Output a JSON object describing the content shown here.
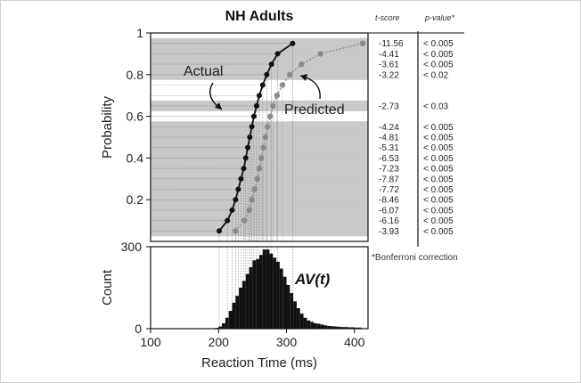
{
  "chart_data": [
    {
      "type": "line",
      "title": "NH Adults",
      "xlabel": "",
      "ylabel": "Probability",
      "ylim": [
        0.0,
        1.0
      ],
      "xlim": [
        100,
        420
      ],
      "ytick_labels": [
        "0.2",
        "0.4",
        "0.6",
        "0.8",
        "1"
      ],
      "yticks": [
        0.2,
        0.4,
        0.6,
        0.8,
        1.0
      ],
      "probability_levels": [
        0.95,
        0.9,
        0.85,
        0.8,
        0.75,
        0.7,
        0.65,
        0.6,
        0.55,
        0.5,
        0.45,
        0.4,
        0.35,
        0.3,
        0.25,
        0.2,
        0.15,
        0.1,
        0.05
      ],
      "series": [
        {
          "name": "Actual",
          "color": "#111111",
          "x": [
            201,
            213,
            220,
            225,
            229,
            233,
            237,
            240,
            243,
            246,
            249,
            252,
            256,
            260,
            265,
            271,
            278,
            287,
            309
          ],
          "y": [
            0.05,
            0.1,
            0.15,
            0.2,
            0.25,
            0.3,
            0.35,
            0.4,
            0.45,
            0.5,
            0.55,
            0.6,
            0.65,
            0.7,
            0.75,
            0.8,
            0.85,
            0.9,
            0.95
          ]
        },
        {
          "name": "Predicted",
          "color": "#8a8a8a",
          "x": [
            225,
            238,
            245,
            249,
            253,
            257,
            260,
            263,
            266,
            269,
            272,
            276,
            280,
            286,
            294,
            305,
            322,
            350,
            412
          ],
          "y": [
            0.05,
            0.1,
            0.15,
            0.2,
            0.25,
            0.3,
            0.35,
            0.4,
            0.45,
            0.5,
            0.55,
            0.6,
            0.65,
            0.7,
            0.75,
            0.8,
            0.85,
            0.9,
            0.95
          ]
        }
      ],
      "significance_table": {
        "headers": [
          "t-score",
          "p-value*"
        ],
        "rows": [
          {
            "t": "-11.56",
            "p": "< 0.005",
            "level": 0.95,
            "significant": true
          },
          {
            "t": "-4.41",
            "p": "< 0.005",
            "level": 0.9,
            "significant": true
          },
          {
            "t": "-3.61",
            "p": "< 0.005",
            "level": 0.85,
            "significant": true
          },
          {
            "t": "-3.22",
            "p": "< 0.02",
            "level": 0.8,
            "significant": true
          },
          {
            "t": "",
            "p": "",
            "level": 0.75,
            "significant": false
          },
          {
            "t": "",
            "p": "",
            "level": 0.7,
            "significant": false
          },
          {
            "t": "-2.73",
            "p": "< 0.03",
            "level": 0.65,
            "significant": true
          },
          {
            "t": "",
            "p": "",
            "level": 0.6,
            "significant": false
          },
          {
            "t": "-4.24",
            "p": "< 0.005",
            "level": 0.55,
            "significant": true
          },
          {
            "t": "-4.81",
            "p": "< 0.005",
            "level": 0.5,
            "significant": true
          },
          {
            "t": "-5.31",
            "p": "< 0.005",
            "level": 0.45,
            "significant": true
          },
          {
            "t": "-6.53",
            "p": "< 0.005",
            "level": 0.4,
            "significant": true
          },
          {
            "t": "-7.23",
            "p": "< 0.005",
            "level": 0.35,
            "significant": true
          },
          {
            "t": "-7.87",
            "p": "< 0.005",
            "level": 0.3,
            "significant": true
          },
          {
            "t": "-7.72",
            "p": "< 0.005",
            "level": 0.25,
            "significant": true
          },
          {
            "t": "-8.46",
            "p": "< 0.005",
            "level": 0.2,
            "significant": true
          },
          {
            "t": "-6.07",
            "p": "< 0.005",
            "level": 0.15,
            "significant": true
          },
          {
            "t": "-6.16",
            "p": "< 0.005",
            "level": 0.1,
            "significant": true
          },
          {
            "t": "-3.93",
            "p": "< 0.005",
            "level": 0.05,
            "significant": true
          }
        ],
        "footnote": "*Bonferroni correction"
      },
      "grid": false,
      "shaded_color": "#c9c9c9"
    },
    {
      "type": "bar",
      "title": "",
      "inset_label": "AV(t)",
      "xlabel": "Reaction Time (ms)",
      "ylabel": "Count",
      "xlim": [
        100,
        420
      ],
      "ylim": [
        0,
        300
      ],
      "yticks": [
        0,
        300
      ],
      "ytick_labels": [
        "0",
        "300"
      ],
      "xticks": [
        100,
        200,
        300,
        400
      ],
      "xtick_labels": [
        "100",
        "200",
        "300",
        "400"
      ],
      "bin_width": 5,
      "bin_starts": [
        195,
        200,
        205,
        210,
        215,
        220,
        225,
        230,
        235,
        240,
        245,
        250,
        255,
        260,
        265,
        270,
        275,
        280,
        285,
        290,
        295,
        300,
        305,
        310,
        315,
        320,
        325,
        330,
        335,
        340,
        345,
        350,
        355,
        360,
        365,
        370,
        375,
        380,
        385,
        390,
        395,
        400,
        405
      ],
      "values": [
        3,
        8,
        20,
        40,
        65,
        95,
        120,
        150,
        175,
        200,
        225,
        250,
        255,
        270,
        290,
        290,
        275,
        260,
        245,
        220,
        190,
        160,
        130,
        100,
        75,
        55,
        40,
        30,
        25,
        20,
        18,
        15,
        12,
        10,
        9,
        8,
        7,
        6,
        6,
        5,
        5,
        4,
        4
      ],
      "color": "#111111"
    }
  ]
}
